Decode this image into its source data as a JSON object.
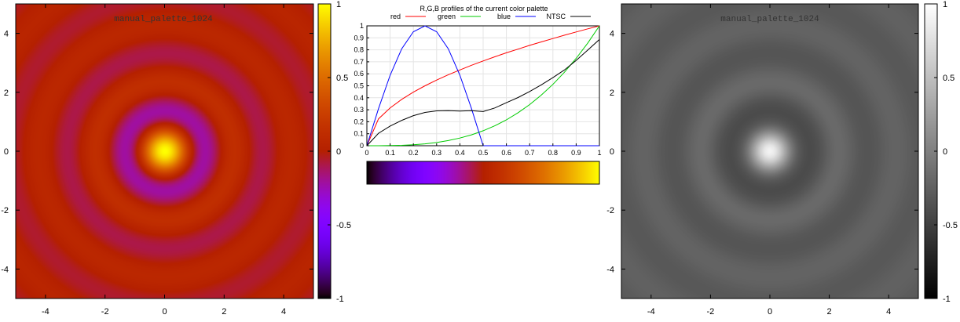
{
  "chart_data": [
    {
      "type": "heatmap",
      "title": "manual_palette_1024",
      "palette": "manual",
      "x_ticks": [
        -4,
        -2,
        0,
        2,
        4
      ],
      "y_ticks": [
        4,
        2,
        0,
        -2,
        -4
      ],
      "xlim": [
        -5,
        5
      ],
      "ylim": [
        -5,
        5
      ],
      "colorbar": {
        "ticks": [
          "1",
          "0.5",
          "0",
          "-0.5",
          "-1"
        ],
        "range": [
          -1,
          1
        ]
      }
    },
    {
      "type": "line",
      "title": "R,G,B profiles of the current color palette",
      "x_ticks": [
        "0",
        "0.1",
        "0.2",
        "0.3",
        "0.4",
        "0.5",
        "0.6",
        "0.7",
        "0.8",
        "0.9",
        "1"
      ],
      "y_ticks": [
        "0",
        "0.1",
        "0.2",
        "0.3",
        "0.4",
        "0.5",
        "0.6",
        "0.7",
        "0.8",
        "0.9",
        "1"
      ],
      "xlim": [
        0,
        1
      ],
      "ylim": [
        0,
        1
      ],
      "grid": true,
      "legend_position": "top",
      "series": [
        {
          "name": "red",
          "color": "#ff0000",
          "x": [
            0,
            0.05,
            0.1,
            0.15,
            0.2,
            0.25,
            0.3,
            0.35,
            0.4,
            0.45,
            0.5,
            0.55,
            0.6,
            0.65,
            0.7,
            0.75,
            0.8,
            0.85,
            0.9,
            0.95,
            1
          ],
          "values": [
            0,
            0.224,
            0.316,
            0.387,
            0.447,
            0.5,
            0.548,
            0.592,
            0.632,
            0.671,
            0.707,
            0.742,
            0.775,
            0.806,
            0.837,
            0.866,
            0.894,
            0.922,
            0.949,
            0.975,
            1
          ]
        },
        {
          "name": "green",
          "color": "#00cc00",
          "x": [
            0,
            0.05,
            0.1,
            0.15,
            0.2,
            0.25,
            0.3,
            0.35,
            0.4,
            0.45,
            0.5,
            0.55,
            0.6,
            0.65,
            0.7,
            0.75,
            0.8,
            0.85,
            0.9,
            0.95,
            1
          ],
          "values": [
            0,
            0,
            0.001,
            0.003,
            0.008,
            0.016,
            0.027,
            0.043,
            0.064,
            0.091,
            0.125,
            0.166,
            0.216,
            0.275,
            0.343,
            0.422,
            0.512,
            0.614,
            0.729,
            0.857,
            1
          ]
        },
        {
          "name": "blue",
          "color": "#0000ff",
          "x": [
            0,
            0.05,
            0.1,
            0.15,
            0.2,
            0.25,
            0.3,
            0.35,
            0.4,
            0.45,
            0.5,
            0.55,
            0.6,
            0.65,
            0.7,
            0.75,
            0.8,
            0.85,
            0.9,
            0.95,
            1
          ],
          "values": [
            0,
            0.309,
            0.588,
            0.809,
            0.951,
            1,
            0.951,
            0.809,
            0.588,
            0.309,
            0,
            0,
            0,
            0,
            0,
            0,
            0,
            0,
            0,
            0,
            0
          ]
        },
        {
          "name": "NTSC",
          "color": "#000000",
          "x": [
            0,
            0.05,
            0.1,
            0.15,
            0.2,
            0.25,
            0.3,
            0.35,
            0.4,
            0.45,
            0.5,
            0.55,
            0.6,
            0.65,
            0.7,
            0.75,
            0.8,
            0.85,
            0.9,
            0.95,
            1
          ],
          "values": [
            0,
            0.104,
            0.164,
            0.212,
            0.251,
            0.278,
            0.291,
            0.293,
            0.289,
            0.292,
            0.285,
            0.315,
            0.359,
            0.402,
            0.452,
            0.508,
            0.568,
            0.633,
            0.712,
            0.798,
            0.886
          ]
        }
      ],
      "colorbar_gradient": {
        "range": [
          0,
          1
        ]
      }
    },
    {
      "type": "heatmap",
      "title": "manual_palette_1024",
      "palette": "grayscale",
      "x_ticks": [
        -4,
        -2,
        0,
        2,
        4
      ],
      "y_ticks": [
        4,
        2,
        0,
        -2,
        -4
      ],
      "xlim": [
        -5,
        5
      ],
      "ylim": [
        -5,
        5
      ],
      "colorbar": {
        "ticks": [
          "1",
          "0.5",
          "0",
          "-0.5",
          "-1"
        ],
        "range": [
          -1,
          1
        ]
      }
    }
  ]
}
